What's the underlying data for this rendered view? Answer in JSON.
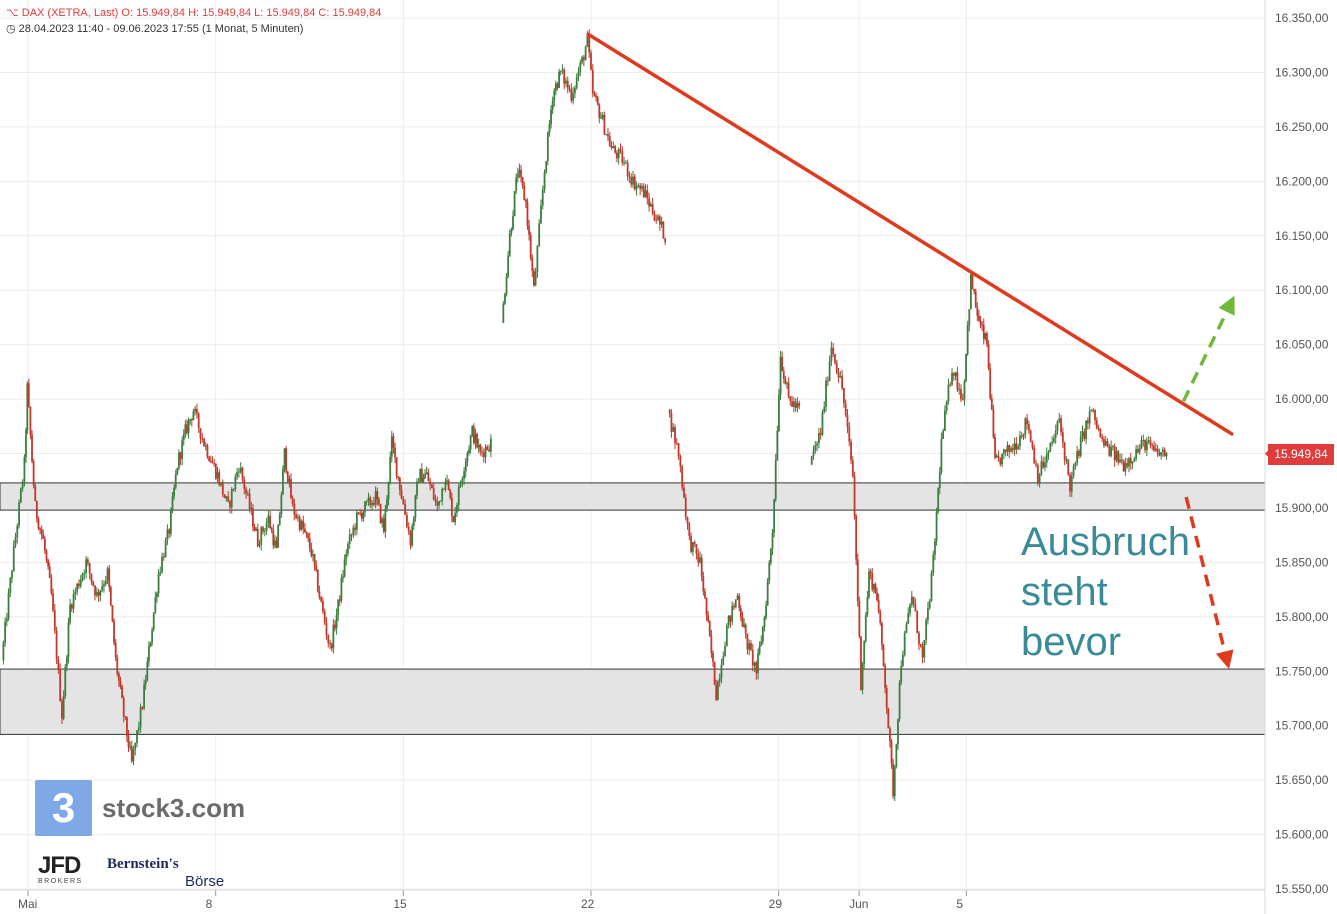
{
  "header": {
    "instrument": "DAX (XETRA, Last)",
    "open_label": "O:",
    "open_value": "15.949,84",
    "high_label": "H:",
    "high_value": "15.949,84",
    "low_label": "L:",
    "low_value": "15.949,84",
    "close_label": "C:",
    "close_value": "15.949,84",
    "range": "28.04.2023 11:40 - 09.06.2023 17:55",
    "interval": "(1 Monat, 5 Minuten)",
    "icon_name": "clock-icon",
    "chart_icon_name": "candles-icon"
  },
  "branding": {
    "logo_digit": "3",
    "site": "stock3.com",
    "partner1_main": "JFD",
    "partner1_sub": "BROKERS",
    "partner2_line1": "Bernstein's",
    "partner2_line2": "Börse"
  },
  "annotation": {
    "line1": "Ausbruch",
    "line2": "steht",
    "line3": "bevor"
  },
  "last_price_badge": "15.949,84",
  "colors": {
    "trend_line": "#e03a1e",
    "down_arrow": "#e03a1e",
    "up_arrow": "#72b83c",
    "zone_fill": "#e4e4e4",
    "annotation_text": "#3a8b98",
    "candle_up": "#3d7d3d",
    "candle_down": "#c0392b"
  },
  "chart_data": {
    "type": "candlestick",
    "title": "DAX (XETRA, Last)",
    "interval": "5 Minuten",
    "ylim": [
      15540,
      16360
    ],
    "y_ticks": [
      "16.350,00",
      "16.300,00",
      "16.250,00",
      "16.200,00",
      "16.150,00",
      "16.100,00",
      "16.050,00",
      "16.000,00",
      "15.950,00",
      "15.900,00",
      "15.850,00",
      "15.800,00",
      "15.750,00",
      "15.700,00",
      "15.650,00",
      "15.600,00",
      "15.550,00"
    ],
    "y_tick_values": [
      16350,
      16300,
      16250,
      16200,
      16150,
      16100,
      16050,
      16000,
      15950,
      15900,
      15850,
      15800,
      15750,
      15700,
      15650,
      15600,
      15550
    ],
    "x_ticks": [
      "Mai",
      "8",
      "15",
      "22",
      "29",
      "Jun",
      "5"
    ],
    "x_tick_days": [
      1,
      8,
      15,
      22,
      29,
      32,
      36
    ],
    "x_domain_days": [
      0.0,
      45.9
    ],
    "last_price": 15949.84,
    "price_path": [
      [
        0.05,
        15760
      ],
      [
        0.5,
        15860
      ],
      [
        0.9,
        15940
      ],
      [
        1.0,
        16010
      ],
      [
        1.3,
        15900
      ],
      [
        1.6,
        15870
      ],
      [
        1.9,
        15820
      ],
      [
        2.3,
        15710
      ],
      [
        2.6,
        15810
      ],
      [
        3.2,
        15850
      ],
      [
        3.6,
        15820
      ],
      [
        4.0,
        15840
      ],
      [
        4.3,
        15760
      ],
      [
        4.6,
        15710
      ],
      [
        4.9,
        15665
      ],
      [
        5.3,
        15720
      ],
      [
        5.6,
        15780
      ],
      [
        5.9,
        15840
      ],
      [
        6.3,
        15880
      ],
      [
        6.6,
        15940
      ],
      [
        6.9,
        15970
      ],
      [
        7.2,
        15990
      ],
      [
        7.6,
        15960
      ],
      [
        8.1,
        15930
      ],
      [
        8.5,
        15900
      ],
      [
        8.9,
        15940
      ],
      [
        9.3,
        15900
      ],
      [
        9.6,
        15870
      ],
      [
        10.0,
        15890
      ],
      [
        10.3,
        15860
      ],
      [
        10.6,
        15950
      ],
      [
        10.9,
        15900
      ],
      [
        11.3,
        15880
      ],
      [
        11.6,
        15860
      ],
      [
        11.9,
        15820
      ],
      [
        12.3,
        15770
      ],
      [
        12.6,
        15810
      ],
      [
        12.9,
        15860
      ],
      [
        13.3,
        15890
      ],
      [
        13.6,
        15900
      ],
      [
        14.0,
        15910
      ],
      [
        14.3,
        15880
      ],
      [
        14.6,
        15960
      ],
      [
        14.9,
        15920
      ],
      [
        15.3,
        15870
      ],
      [
        15.6,
        15930
      ],
      [
        15.9,
        15930
      ],
      [
        16.3,
        15900
      ],
      [
        16.6,
        15930
      ],
      [
        16.9,
        15890
      ],
      [
        17.3,
        15940
      ],
      [
        17.6,
        15970
      ],
      [
        17.9,
        15950
      ],
      [
        18.3,
        15960
      ],
      [
        18.7,
        16070
      ],
      [
        19.0,
        16150
      ],
      [
        19.3,
        16210
      ],
      [
        19.6,
        16180
      ],
      [
        19.9,
        16100
      ],
      [
        20.3,
        16210
      ],
      [
        20.6,
        16280
      ],
      [
        20.9,
        16300
      ],
      [
        21.3,
        16280
      ],
      [
        21.7,
        16310
      ],
      [
        21.9,
        16330
      ],
      [
        22.1,
        16280
      ],
      [
        22.4,
        16260
      ],
      [
        22.8,
        16230
      ],
      [
        23.2,
        16220
      ],
      [
        23.6,
        16200
      ],
      [
        24.0,
        16190
      ],
      [
        24.4,
        16170
      ],
      [
        24.8,
        16150
      ],
      [
        24.9,
        15990
      ],
      [
        25.3,
        15950
      ],
      [
        25.7,
        15870
      ],
      [
        26.1,
        15850
      ],
      [
        26.4,
        15790
      ],
      [
        26.7,
        15730
      ],
      [
        27.1,
        15790
      ],
      [
        27.5,
        15820
      ],
      [
        27.8,
        15780
      ],
      [
        28.2,
        15750
      ],
      [
        28.5,
        15800
      ],
      [
        28.8,
        15880
      ],
      [
        29.1,
        16040
      ],
      [
        29.4,
        16000
      ],
      [
        29.8,
        15990
      ],
      [
        30.2,
        15940
      ],
      [
        30.6,
        15970
      ],
      [
        31.0,
        16050
      ],
      [
        31.4,
        16010
      ],
      [
        31.8,
        15930
      ],
      [
        32.1,
        15740
      ],
      [
        32.4,
        15840
      ],
      [
        32.7,
        15820
      ],
      [
        33.0,
        15740
      ],
      [
        33.3,
        15640
      ],
      [
        33.6,
        15760
      ],
      [
        34.0,
        15820
      ],
      [
        34.4,
        15760
      ],
      [
        34.8,
        15850
      ],
      [
        35.1,
        15960
      ],
      [
        35.5,
        16030
      ],
      [
        35.9,
        16000
      ],
      [
        36.2,
        16110
      ],
      [
        36.5,
        16070
      ],
      [
        36.8,
        16050
      ],
      [
        37.1,
        15940
      ],
      [
        37.5,
        15950
      ],
      [
        37.9,
        15960
      ],
      [
        38.3,
        15980
      ],
      [
        38.7,
        15930
      ],
      [
        39.1,
        15950
      ],
      [
        39.5,
        15980
      ],
      [
        39.9,
        15920
      ],
      [
        40.3,
        15960
      ],
      [
        40.7,
        15990
      ],
      [
        41.1,
        15960
      ],
      [
        41.5,
        15950
      ],
      [
        41.9,
        15940
      ],
      [
        42.3,
        15950
      ],
      [
        42.7,
        15960
      ],
      [
        43.1,
        15950
      ],
      [
        43.5,
        15949.84
      ]
    ],
    "price_gaps_after_days": [
      18.3,
      24.8,
      29.8
    ],
    "resistance_trendline": {
      "from": [
        21.9,
        16335
      ],
      "to": [
        45.9,
        15968
      ]
    },
    "zones": [
      {
        "low": 15898,
        "high": 15923
      },
      {
        "low": 15692,
        "high": 15752
      }
    ],
    "arrows": [
      {
        "direction": "up",
        "from": [
          44.1,
          15998
        ],
        "to": [
          46.0,
          16095
        ],
        "style": "dashed",
        "color": "#72b83c"
      },
      {
        "direction": "down",
        "from": [
          44.2,
          15910
        ],
        "to": [
          45.8,
          15752
        ],
        "style": "dashed",
        "color": "#e03a1e"
      }
    ],
    "grid": true,
    "legend": "none"
  }
}
